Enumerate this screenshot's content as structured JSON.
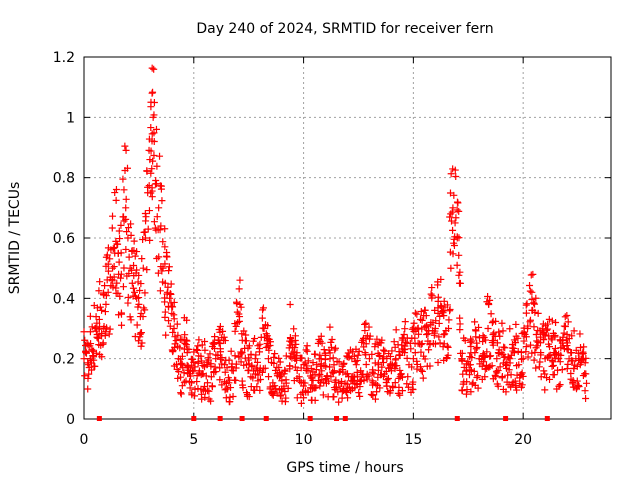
{
  "chart_data": {
    "type": "scatter",
    "title": "Day 240 of 2024, SRMTID for receiver fern",
    "xlabel": "GPS time / hours",
    "ylabel": "SRMTID / TECUs",
    "xlim": [
      0,
      24
    ],
    "ylim": [
      0,
      1.2
    ],
    "xticks": [
      0,
      5,
      10,
      15,
      20
    ],
    "xtick_labels": [
      "0",
      "5",
      "10",
      "15",
      "20"
    ],
    "yticks": [
      0,
      0.2,
      0.4,
      0.6,
      0.8,
      1.0,
      1.2
    ],
    "ytick_labels": [
      "0",
      "0.2",
      "0.4",
      "0.6",
      "0.8",
      "1",
      "1.2"
    ],
    "grid": true,
    "marker": "plus",
    "series": [
      {
        "name": "SRMTID",
        "color": "#ff0000",
        "x": [
          0.0,
          0.1,
          0.2,
          0.3,
          0.4,
          0.5,
          0.6,
          0.7,
          0.8,
          0.9,
          1.0,
          1.1,
          1.2,
          1.3,
          1.4,
          1.5,
          1.6,
          1.7,
          1.8,
          1.9,
          2.0,
          2.1,
          2.2,
          2.3,
          2.4,
          2.5,
          2.6,
          2.7,
          2.8,
          2.9,
          3.0,
          3.05,
          3.1,
          3.15,
          3.2,
          3.3,
          3.4,
          3.5,
          3.6,
          3.7,
          3.8,
          3.9,
          4.0,
          4.1,
          4.2,
          4.3,
          4.4,
          4.5,
          4.6,
          4.7,
          4.8,
          4.9,
          5.0,
          5.2,
          5.4,
          5.6,
          5.8,
          6.0,
          6.2,
          6.4,
          6.6,
          6.8,
          7.0,
          7.1,
          7.2,
          7.4,
          7.6,
          7.8,
          8.0,
          8.2,
          8.4,
          8.6,
          8.8,
          9.0,
          9.2,
          9.4,
          9.6,
          9.8,
          10.0,
          10.2,
          10.4,
          10.6,
          10.8,
          11.0,
          11.2,
          11.4,
          11.6,
          11.8,
          12.0,
          12.2,
          12.4,
          12.6,
          12.8,
          13.0,
          13.2,
          13.4,
          13.6,
          13.8,
          14.0,
          14.2,
          14.4,
          14.6,
          14.8,
          15.0,
          15.2,
          15.4,
          15.6,
          15.8,
          16.0,
          16.2,
          16.4,
          16.6,
          16.7,
          16.8,
          16.9,
          17.0,
          17.1,
          17.2,
          17.4,
          17.6,
          17.8,
          18.0,
          18.2,
          18.4,
          18.6,
          18.8,
          19.0,
          19.2,
          19.4,
          19.6,
          19.8,
          20.0,
          20.2,
          20.4,
          20.6,
          20.8,
          21.0,
          21.2,
          21.4,
          21.6,
          21.8,
          22.0,
          22.2,
          22.4,
          22.6,
          22.8
        ],
        "y": [
          0.2,
          0.22,
          0.18,
          0.25,
          0.21,
          0.3,
          0.28,
          0.33,
          0.36,
          0.3,
          0.38,
          0.42,
          0.47,
          0.5,
          0.55,
          0.58,
          0.52,
          0.48,
          0.67,
          0.7,
          0.6,
          0.5,
          0.45,
          0.42,
          0.4,
          0.38,
          0.35,
          0.5,
          0.6,
          0.75,
          0.86,
          1.05,
          1.08,
          1.0,
          0.92,
          0.78,
          0.7,
          0.64,
          0.5,
          0.45,
          0.42,
          0.4,
          0.35,
          0.3,
          0.26,
          0.2,
          0.18,
          0.17,
          0.25,
          0.22,
          0.15,
          0.12,
          0.16,
          0.19,
          0.15,
          0.18,
          0.14,
          0.2,
          0.25,
          0.18,
          0.12,
          0.16,
          0.32,
          0.38,
          0.22,
          0.18,
          0.14,
          0.2,
          0.16,
          0.3,
          0.2,
          0.12,
          0.15,
          0.1,
          0.13,
          0.27,
          0.2,
          0.14,
          0.12,
          0.16,
          0.1,
          0.18,
          0.2,
          0.13,
          0.2,
          0.16,
          0.12,
          0.1,
          0.15,
          0.2,
          0.18,
          0.16,
          0.22,
          0.2,
          0.15,
          0.18,
          0.2,
          0.13,
          0.16,
          0.2,
          0.14,
          0.22,
          0.18,
          0.2,
          0.3,
          0.25,
          0.28,
          0.32,
          0.3,
          0.34,
          0.28,
          0.3,
          0.68,
          0.7,
          0.65,
          0.6,
          0.45,
          0.2,
          0.16,
          0.18,
          0.22,
          0.2,
          0.19,
          0.3,
          0.26,
          0.2,
          0.22,
          0.18,
          0.2,
          0.22,
          0.18,
          0.2,
          0.3,
          0.36,
          0.28,
          0.22,
          0.2,
          0.24,
          0.22,
          0.2,
          0.26,
          0.28,
          0.22,
          0.2,
          0.18,
          0.15
        ],
        "labels": []
      }
    ],
    "data_gaps_at_hours": [
      0.7,
      5.0,
      6.2,
      7.2,
      8.3,
      10.3,
      11.5,
      11.9,
      17.0,
      19.2,
      21.1
    ]
  }
}
